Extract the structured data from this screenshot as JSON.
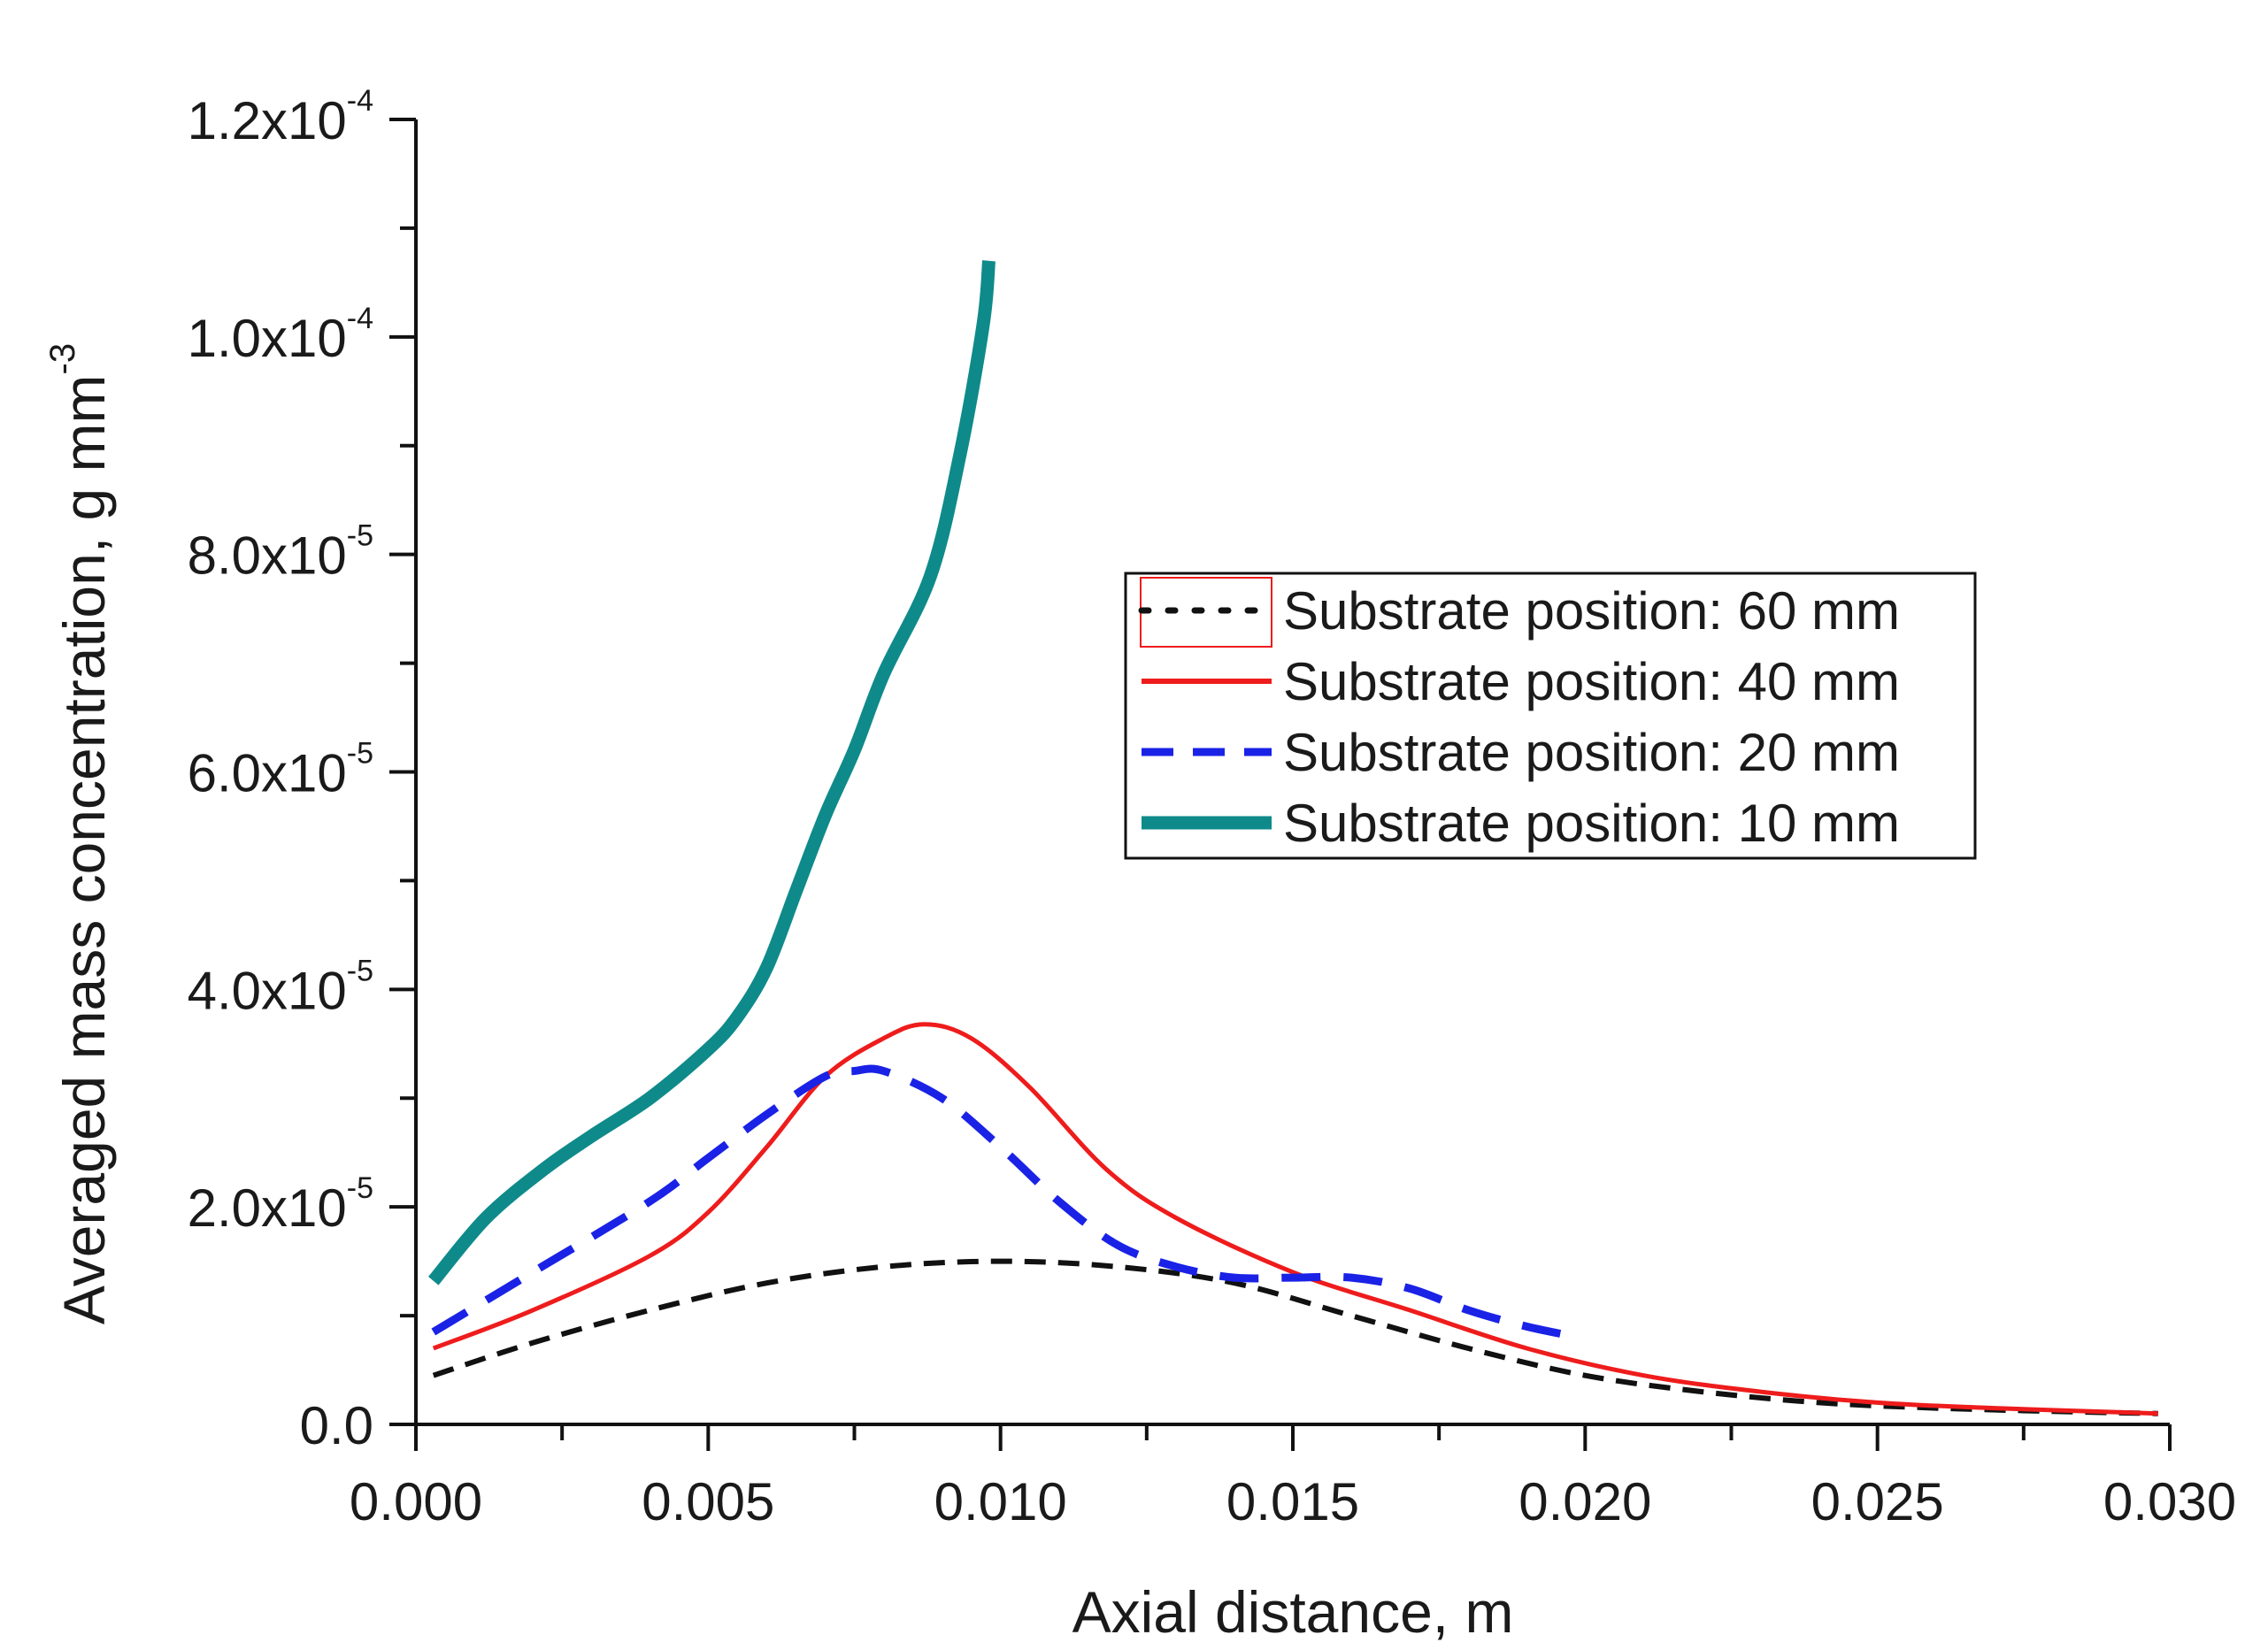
{
  "chart_data": {
    "type": "line",
    "xlabel": "Axial distance, m",
    "ylabel": "Averaged mass concentration, g mm",
    "ylabel_sup": "-3",
    "xlim": [
      0,
      0.03
    ],
    "ylim": [
      0,
      0.00012
    ],
    "x_ticks": [
      0.0,
      0.005,
      0.01,
      0.015,
      0.02,
      0.025,
      0.03
    ],
    "x_tick_labels": [
      "0.000",
      "0.005",
      "0.010",
      "0.015",
      "0.020",
      "0.025",
      "0.030"
    ],
    "y_ticks": [
      0,
      2e-05,
      4e-05,
      6e-05,
      8e-05,
      0.0001,
      0.00012
    ],
    "y_tick_labels": [
      {
        "mant": "0.0",
        "exp": ""
      },
      {
        "mant": "2.0x10",
        "exp": "-5"
      },
      {
        "mant": "4.0x10",
        "exp": "-5"
      },
      {
        "mant": "6.0x10",
        "exp": "-5"
      },
      {
        "mant": "8.0x10",
        "exp": "-5"
      },
      {
        "mant": "1.0x10",
        "exp": "-4"
      },
      {
        "mant": "1.2x10",
        "exp": "-4"
      }
    ],
    "legend_position": "upper-right",
    "series": [
      {
        "name": "Substrate position: 60 mm",
        "color": "#111111",
        "style": "dash-black",
        "points": [
          [
            0.0003,
            4.5e-06
          ],
          [
            0.002,
            7.5e-06
          ],
          [
            0.004,
            1.05e-05
          ],
          [
            0.006,
            1.3e-05
          ],
          [
            0.008,
            1.45e-05
          ],
          [
            0.01,
            1.5e-05
          ],
          [
            0.012,
            1.45e-05
          ],
          [
            0.014,
            1.3e-05
          ],
          [
            0.016,
            1e-05
          ],
          [
            0.018,
            7e-06
          ],
          [
            0.02,
            4.5e-06
          ],
          [
            0.022,
            3e-06
          ],
          [
            0.024,
            2e-06
          ],
          [
            0.026,
            1.5e-06
          ],
          [
            0.028,
            1.2e-06
          ],
          [
            0.0298,
            1e-06
          ]
        ]
      },
      {
        "name": "Substrate position: 40 mm",
        "color": "#ee1c1c",
        "style": "solid-red",
        "points": [
          [
            0.0003,
            7e-06
          ],
          [
            0.002,
            1.05e-05
          ],
          [
            0.004,
            1.55e-05
          ],
          [
            0.005,
            1.95e-05
          ],
          [
            0.006,
            2.55e-05
          ],
          [
            0.007,
            3.2e-05
          ],
          [
            0.008,
            3.55e-05
          ],
          [
            0.0087,
            3.68e-05
          ],
          [
            0.0095,
            3.55e-05
          ],
          [
            0.0105,
            3.1e-05
          ],
          [
            0.0118,
            2.35e-05
          ],
          [
            0.013,
            1.9e-05
          ],
          [
            0.015,
            1.4e-05
          ],
          [
            0.017,
            1.05e-05
          ],
          [
            0.019,
            7e-06
          ],
          [
            0.021,
            4.5e-06
          ],
          [
            0.023,
            3e-06
          ],
          [
            0.025,
            2e-06
          ],
          [
            0.027,
            1.5e-06
          ],
          [
            0.0298,
            1e-06
          ]
        ]
      },
      {
        "name": "Substrate position: 20 mm",
        "color": "#1a22e6",
        "style": "dash-blue",
        "points": [
          [
            0.0003,
            8.5e-06
          ],
          [
            0.002,
            1.4e-05
          ],
          [
            0.004,
            2.05e-05
          ],
          [
            0.005,
            2.45e-05
          ],
          [
            0.006,
            2.85e-05
          ],
          [
            0.007,
            3.2e-05
          ],
          [
            0.0075,
            3.25e-05
          ],
          [
            0.008,
            3.25e-05
          ],
          [
            0.009,
            3e-05
          ],
          [
            0.01,
            2.55e-05
          ],
          [
            0.011,
            2.05e-05
          ],
          [
            0.012,
            1.65e-05
          ],
          [
            0.013,
            1.45e-05
          ],
          [
            0.014,
            1.35e-05
          ],
          [
            0.015,
            1.35e-05
          ],
          [
            0.016,
            1.35e-05
          ],
          [
            0.017,
            1.25e-05
          ],
          [
            0.018,
            1.05e-05
          ],
          [
            0.019,
            9e-06
          ],
          [
            0.0199,
            8e-06
          ]
        ]
      },
      {
        "name": "Substrate position: 10 mm",
        "color": "#0f8a8a",
        "style": "thick-teal",
        "points": [
          [
            0.0003,
            1.32e-05
          ],
          [
            0.0012,
            1.9e-05
          ],
          [
            0.0022,
            2.35e-05
          ],
          [
            0.003,
            2.65e-05
          ],
          [
            0.004,
            3e-05
          ],
          [
            0.005,
            3.45e-05
          ],
          [
            0.0055,
            3.75e-05
          ],
          [
            0.006,
            4.2e-05
          ],
          [
            0.0065,
            4.9e-05
          ],
          [
            0.007,
            5.6e-05
          ],
          [
            0.0075,
            6.2e-05
          ],
          [
            0.008,
            6.9e-05
          ],
          [
            0.0088,
            7.8e-05
          ],
          [
            0.0093,
            8.9e-05
          ],
          [
            0.0097,
            0.000101
          ],
          [
            0.0098,
            0.000107
          ]
        ]
      }
    ]
  }
}
